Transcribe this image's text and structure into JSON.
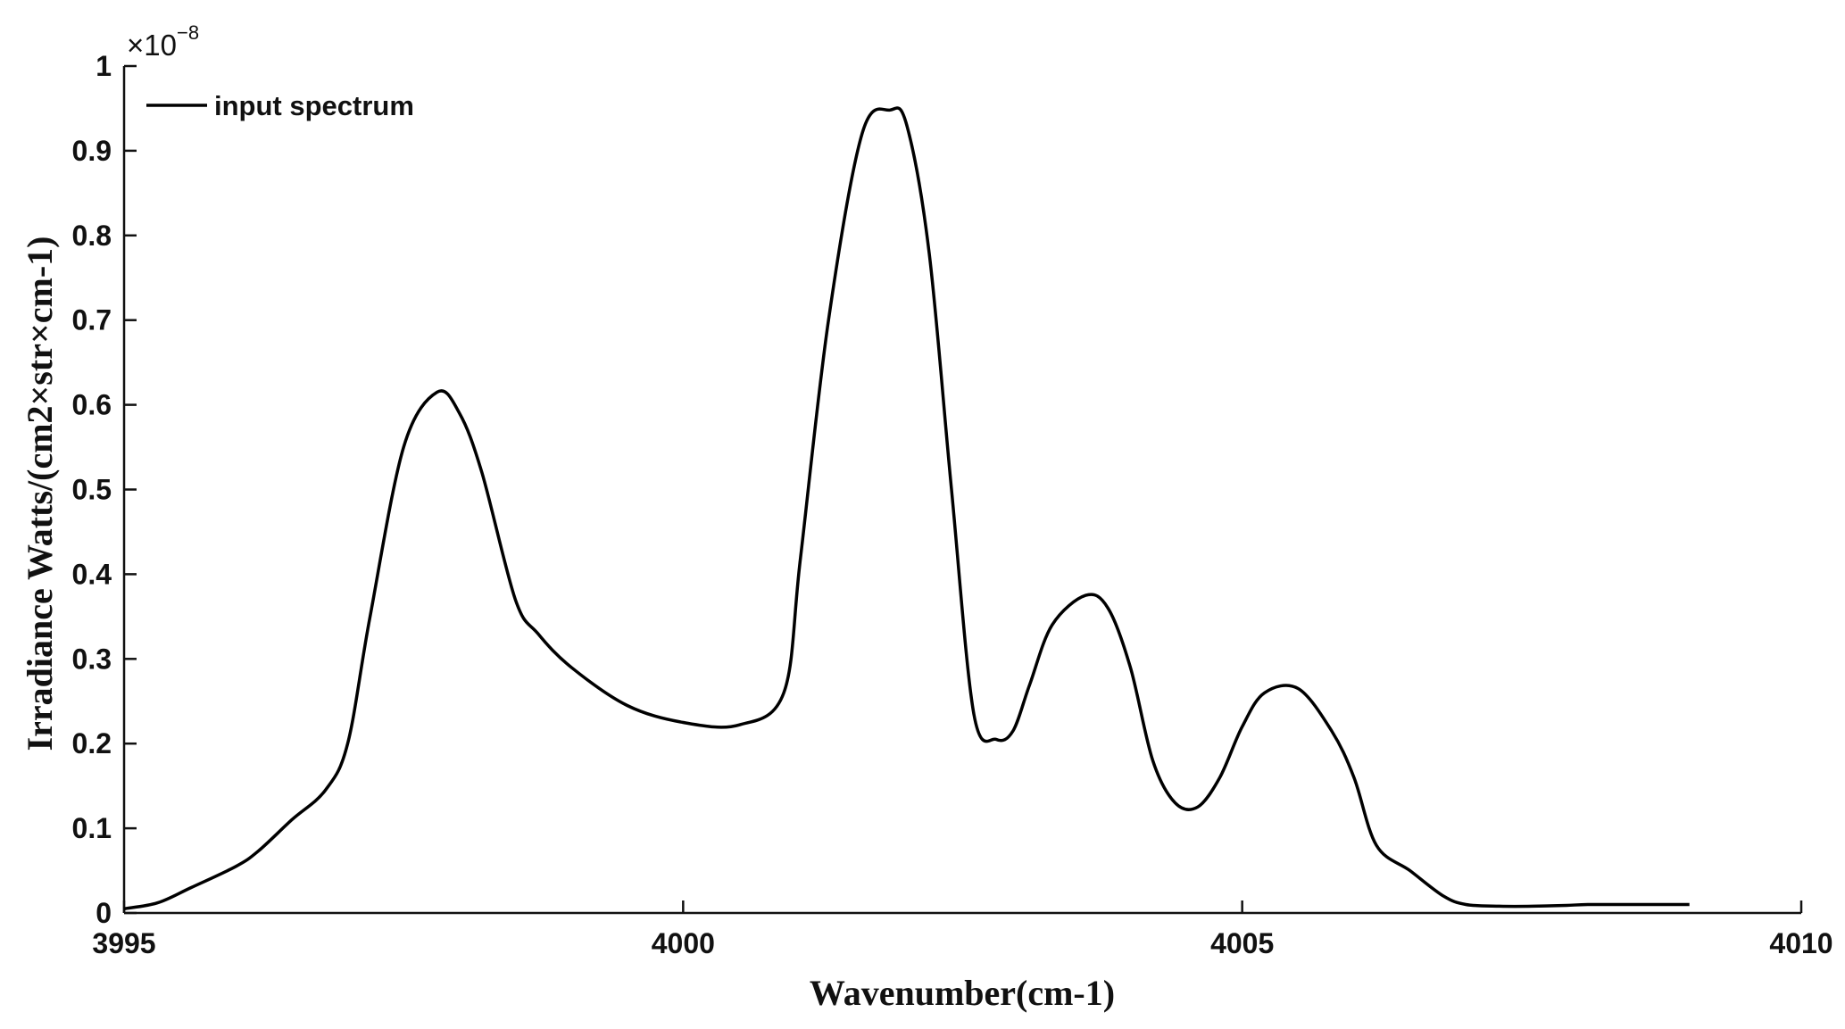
{
  "chart_data": {
    "type": "line",
    "xlabel": "Wavenumber(cm-1)",
    "ylabel": "Irradiance Watts/(cm2×str×cm-1)",
    "y_multiplier": "×10",
    "y_multiplier_exponent": "−8",
    "xlim": [
      3995,
      4010
    ],
    "ylim": [
      0,
      1
    ],
    "x_ticks": [
      {
        "value": 3995,
        "label": "3995"
      },
      {
        "value": 4000,
        "label": "4000"
      },
      {
        "value": 4005,
        "label": "4005"
      },
      {
        "value": 4010,
        "label": "4010"
      }
    ],
    "y_ticks": [
      {
        "value": 0,
        "label": "0"
      },
      {
        "value": 0.1,
        "label": "0.1"
      },
      {
        "value": 0.2,
        "label": "0.2"
      },
      {
        "value": 0.3,
        "label": "0.3"
      },
      {
        "value": 0.4,
        "label": "0.4"
      },
      {
        "value": 0.5,
        "label": "0.5"
      },
      {
        "value": 0.6,
        "label": "0.6"
      },
      {
        "value": 0.7,
        "label": "0.7"
      },
      {
        "value": 0.8,
        "label": "0.8"
      },
      {
        "value": 0.9,
        "label": "0.9"
      },
      {
        "value": 1,
        "label": "1"
      }
    ],
    "legend_position": "top-left",
    "grid": false,
    "series": [
      {
        "name": "input spectrum",
        "color": "#000000",
        "x": [
          3995.0,
          3995.3,
          3995.6,
          3996.0,
          3996.2,
          3996.5,
          3996.8,
          3997.0,
          3997.2,
          3997.5,
          3997.8,
          3998.0,
          3998.2,
          3998.5,
          3998.7,
          3999.0,
          3999.5,
          4000.0,
          4000.5,
          4000.9,
          4001.05,
          4001.3,
          4001.6,
          4001.85,
          4002.0,
          4002.2,
          4002.4,
          4002.6,
          4002.8,
          4002.95,
          4003.1,
          4003.3,
          4003.6,
          4003.8,
          4004.0,
          4004.2,
          4004.4,
          4004.6,
          4004.8,
          4005.0,
          4005.2,
          4005.5,
          4005.8,
          4006.0,
          4006.2,
          4006.5,
          4006.8,
          4007.0,
          4007.3,
          4007.6,
          4007.9,
          4008.1,
          4008.5,
          4009.0
        ],
        "y": [
          0.005,
          0.012,
          0.03,
          0.055,
          0.073,
          0.11,
          0.145,
          0.2,
          0.35,
          0.55,
          0.615,
          0.59,
          0.52,
          0.37,
          0.33,
          0.29,
          0.245,
          0.225,
          0.222,
          0.26,
          0.42,
          0.7,
          0.92,
          0.948,
          0.93,
          0.78,
          0.5,
          0.235,
          0.205,
          0.215,
          0.27,
          0.34,
          0.375,
          0.36,
          0.29,
          0.18,
          0.13,
          0.125,
          0.16,
          0.22,
          0.26,
          0.265,
          0.215,
          0.16,
          0.08,
          0.05,
          0.02,
          0.01,
          0.008,
          0.008,
          0.009,
          0.01,
          0.01,
          0.01
        ]
      }
    ]
  }
}
